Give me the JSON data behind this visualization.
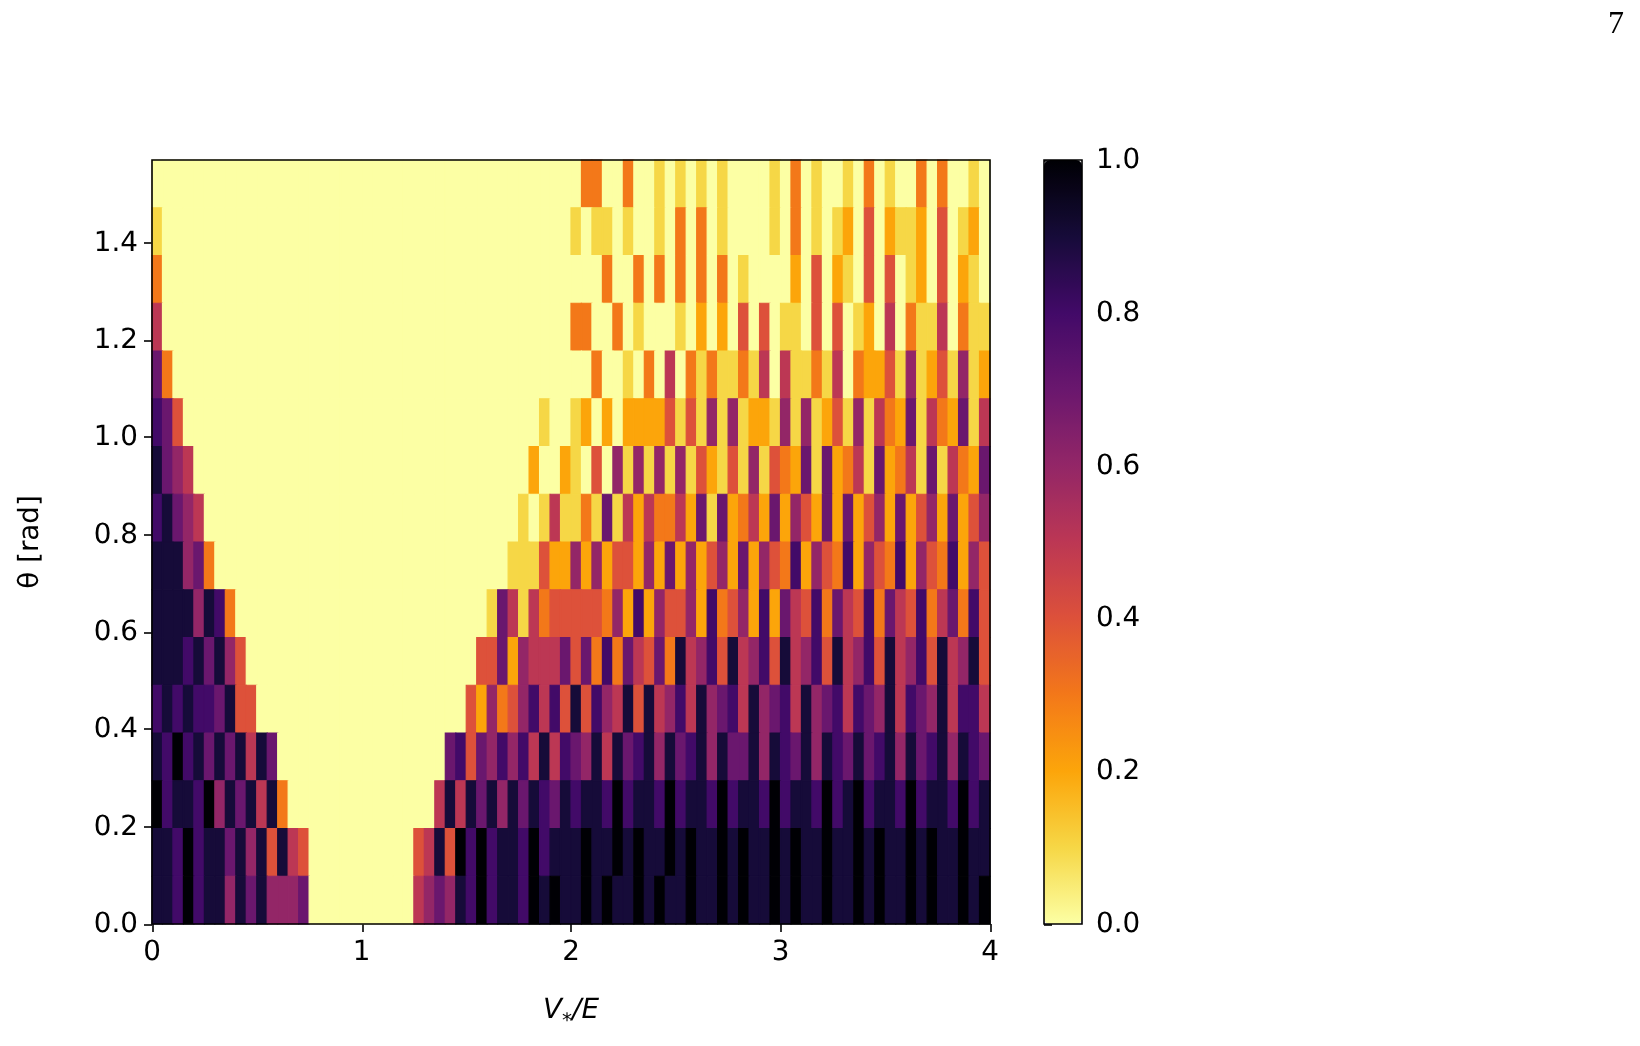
{
  "chart_data": {
    "type": "heatmap",
    "xlabel": "V$_{*}$/E",
    "ylabel": "θ [rad]",
    "xlim": [
      0,
      4
    ],
    "ylim": [
      0,
      1.57
    ],
    "clim": [
      0,
      1
    ],
    "xticks": [
      0,
      1,
      2,
      3,
      4
    ],
    "yticks": [
      {
        "value": 0,
        "label": "0.0"
      },
      0.2,
      0.4,
      0.6,
      0.8,
      {
        "value": 1,
        "label": "1.0"
      },
      1.2,
      1.4
    ],
    "cticks": [
      {
        "value": 0,
        "label": "0.0"
      },
      0.2,
      0.4,
      0.6,
      0.8,
      {
        "value": 1,
        "label": "1.0"
      }
    ],
    "annotations": [
      "7"
    ],
    "cells": [
      [
        0,
        0,
        0,
        0,
        0,
        0,
        0,
        0,
        0,
        0,
        0,
        0,
        0,
        0,
        0,
        0,
        0,
        0,
        0,
        0,
        0,
        0,
        0,
        0,
        0,
        0,
        0,
        0,
        0,
        0,
        0,
        0,
        0,
        0,
        0,
        0,
        0,
        0,
        0,
        0,
        0,
        0.3,
        0.3,
        0,
        0,
        0.3,
        0,
        0,
        0.1,
        0,
        0.1,
        0,
        0.1,
        0,
        0.1,
        0,
        0,
        0,
        0,
        0.1,
        0,
        0.3,
        0,
        0.1,
        0,
        0,
        0.1,
        0,
        0.3,
        0,
        0.1,
        0,
        0,
        0.3,
        0,
        0.3,
        0,
        0,
        0.1,
        0
      ],
      [
        0.1,
        0,
        0,
        0,
        0,
        0,
        0,
        0,
        0,
        0,
        0,
        0,
        0,
        0,
        0,
        0,
        0,
        0,
        0,
        0,
        0,
        0,
        0,
        0,
        0,
        0,
        0,
        0,
        0,
        0,
        0,
        0,
        0,
        0,
        0,
        0,
        0,
        0,
        0,
        0,
        0.1,
        0,
        0.1,
        0.1,
        0,
        0.1,
        0,
        0,
        0.1,
        0,
        0.3,
        0,
        0.3,
        0,
        0.1,
        0,
        0,
        0,
        0,
        0.1,
        0,
        0.3,
        0,
        0.1,
        0,
        0.1,
        0.2,
        0,
        0.4,
        0,
        0.2,
        0.1,
        0.1,
        0.2,
        0,
        0.4,
        0,
        0.1,
        0.2,
        0
      ],
      [
        0.3,
        0,
        0,
        0,
        0,
        0,
        0,
        0,
        0,
        0,
        0,
        0,
        0,
        0,
        0,
        0,
        0,
        0,
        0,
        0,
        0,
        0,
        0,
        0,
        0,
        0,
        0,
        0,
        0,
        0,
        0,
        0,
        0,
        0,
        0,
        0,
        0,
        0,
        0,
        0,
        0,
        0,
        0,
        0.3,
        0,
        0,
        0.3,
        0,
        0.3,
        0,
        0.3,
        0,
        0.3,
        0,
        0.3,
        0,
        0.1,
        0,
        0,
        0,
        0,
        0.2,
        0,
        0.4,
        0,
        0.2,
        0.1,
        0,
        0.4,
        0,
        0.4,
        0,
        0.1,
        0.2,
        0,
        0.4,
        0,
        0.2,
        0.1,
        0
      ],
      [
        0.5,
        0,
        0,
        0,
        0,
        0,
        0,
        0,
        0,
        0,
        0,
        0,
        0,
        0,
        0,
        0,
        0,
        0,
        0,
        0,
        0,
        0,
        0,
        0,
        0,
        0,
        0,
        0,
        0,
        0,
        0,
        0,
        0,
        0,
        0,
        0,
        0,
        0,
        0,
        0,
        0.3,
        0.3,
        0,
        0,
        0.3,
        0,
        0.1,
        0,
        0,
        0,
        0.1,
        0,
        0.2,
        0,
        0.2,
        0,
        0.4,
        0,
        0.4,
        0,
        0.1,
        0.1,
        0,
        0.4,
        0,
        0.4,
        0,
        0.1,
        0.2,
        0,
        0.5,
        0,
        0.3,
        0.1,
        0.1,
        0.5,
        0,
        0.3,
        0.1,
        0.1
      ],
      [
        0.7,
        0.3,
        0,
        0,
        0,
        0,
        0,
        0,
        0,
        0,
        0,
        0,
        0,
        0,
        0,
        0,
        0,
        0,
        0,
        0,
        0,
        0,
        0,
        0,
        0,
        0,
        0,
        0,
        0,
        0,
        0,
        0,
        0,
        0,
        0,
        0,
        0,
        0,
        0,
        0,
        0,
        0,
        0.3,
        0,
        0,
        0.1,
        0,
        0.3,
        0,
        0.5,
        0,
        0.3,
        0.1,
        0.3,
        0.1,
        0.1,
        0.3,
        0.1,
        0.5,
        0,
        0.5,
        0.1,
        0.1,
        0.3,
        0.1,
        0.5,
        0,
        0.3,
        0.2,
        0.2,
        0.4,
        0.1,
        0.6,
        0.1,
        0.2,
        0.4,
        0.1,
        0.6,
        0.1,
        0.2
      ],
      [
        0.8,
        0.7,
        0.4,
        0,
        0,
        0,
        0,
        0,
        0,
        0,
        0,
        0,
        0,
        0,
        0,
        0,
        0,
        0,
        0,
        0,
        0,
        0,
        0,
        0,
        0,
        0,
        0,
        0,
        0,
        0,
        0,
        0,
        0,
        0,
        0,
        0,
        0,
        0.1,
        0,
        0,
        0.1,
        0.2,
        0,
        0.2,
        0,
        0.2,
        0.2,
        0.2,
        0.2,
        0.4,
        0.1,
        0.4,
        0.1,
        0.6,
        0.1,
        0.6,
        0.1,
        0.2,
        0.2,
        0.1,
        0.6,
        0.1,
        0.6,
        0.1,
        0.2,
        0.4,
        0.1,
        0.6,
        0.1,
        0.5,
        0.3,
        0.2,
        0.7,
        0.1,
        0.5,
        0.3,
        0.2,
        0.7,
        0.1,
        0.5
      ],
      [
        0.9,
        0.7,
        0.6,
        0.5,
        0,
        0,
        0,
        0,
        0,
        0,
        0,
        0,
        0,
        0,
        0,
        0,
        0,
        0,
        0,
        0,
        0,
        0,
        0,
        0,
        0,
        0,
        0,
        0,
        0,
        0,
        0,
        0,
        0,
        0,
        0,
        0,
        0.2,
        0,
        0,
        0.2,
        0.1,
        0,
        0.4,
        0,
        0.6,
        0.1,
        0.6,
        0.1,
        0.6,
        0.1,
        0.6,
        0.1,
        0.4,
        0.2,
        0.1,
        0.4,
        0.1,
        0.6,
        0.1,
        0.4,
        0.3,
        0.2,
        0.7,
        0.1,
        0.7,
        0.2,
        0.3,
        0.5,
        0.1,
        0.7,
        0.2,
        0.3,
        0.5,
        0.1,
        0.7,
        0.1,
        0.5,
        0.3,
        0.2,
        0.7
      ],
      [
        0.8,
        0.9,
        0.7,
        0.6,
        0.5,
        0,
        0,
        0,
        0,
        0,
        0,
        0,
        0,
        0,
        0,
        0,
        0,
        0,
        0,
        0,
        0,
        0,
        0,
        0,
        0,
        0,
        0,
        0,
        0,
        0,
        0,
        0,
        0,
        0,
        0,
        0.1,
        0,
        0.1,
        0.5,
        0.1,
        0.1,
        0.3,
        0.1,
        0.7,
        0.1,
        0.5,
        0.2,
        0.5,
        0.3,
        0.3,
        0.5,
        0.2,
        0.7,
        0.1,
        0.7,
        0.2,
        0.3,
        0.5,
        0.2,
        0.7,
        0.2,
        0.6,
        0.4,
        0.2,
        0.7,
        0.2,
        0.7,
        0.2,
        0.4,
        0.6,
        0.2,
        0.7,
        0.2,
        0.4,
        0.6,
        0.2,
        0.7,
        0.2,
        0.4,
        0.6
      ],
      [
        0.9,
        0.9,
        0.9,
        0.6,
        0.7,
        0.3,
        0,
        0,
        0,
        0,
        0,
        0,
        0,
        0,
        0,
        0,
        0,
        0,
        0,
        0,
        0,
        0,
        0,
        0,
        0,
        0,
        0,
        0,
        0,
        0,
        0,
        0,
        0,
        0,
        0.1,
        0.1,
        0.1,
        0.4,
        0.2,
        0.2,
        0.6,
        0.2,
        0.6,
        0.2,
        0.4,
        0.4,
        0.2,
        0.6,
        0.2,
        0.7,
        0.2,
        0.6,
        0.2,
        0.4,
        0.6,
        0.2,
        0.7,
        0.2,
        0.6,
        0.4,
        0.3,
        0.8,
        0.2,
        0.6,
        0.4,
        0.3,
        0.8,
        0.2,
        0.6,
        0.4,
        0.3,
        0.8,
        0.2,
        0.6,
        0.4,
        0.3,
        0.8,
        0.2,
        0.6,
        0.4
      ],
      [
        0.9,
        0.9,
        0.9,
        0.9,
        0.6,
        0.9,
        0.8,
        0.3,
        0,
        0,
        0,
        0,
        0,
        0,
        0,
        0,
        0,
        0,
        0,
        0,
        0,
        0,
        0,
        0,
        0,
        0,
        0,
        0,
        0,
        0,
        0,
        0,
        0.1,
        0.7,
        0.5,
        0.1,
        0.5,
        0.3,
        0.4,
        0.4,
        0.4,
        0.4,
        0.4,
        0.3,
        0.6,
        0.2,
        0.8,
        0.2,
        0.6,
        0.4,
        0.4,
        0.6,
        0.2,
        0.8,
        0.3,
        0.4,
        0.6,
        0.2,
        0.8,
        0.2,
        0.7,
        0.5,
        0.4,
        0.8,
        0.3,
        0.7,
        0.5,
        0.4,
        0.8,
        0.3,
        0.7,
        0.5,
        0.4,
        0.8,
        0.3,
        0.5,
        0.7,
        0.3,
        0.8,
        0.4
      ],
      [
        0.9,
        0.9,
        0.9,
        0.8,
        0.9,
        0.7,
        0.9,
        0.6,
        0.4,
        0,
        0,
        0,
        0,
        0,
        0,
        0,
        0,
        0,
        0,
        0,
        0,
        0,
        0,
        0,
        0,
        0,
        0,
        0,
        0,
        0,
        0,
        0.4,
        0.4,
        0.7,
        0.2,
        0.6,
        0.5,
        0.5,
        0.5,
        0.7,
        0.4,
        0.7,
        0.3,
        0.8,
        0.3,
        0.7,
        0.5,
        0.4,
        0.7,
        0.3,
        0.9,
        0.5,
        0.6,
        0.8,
        0.4,
        0.9,
        0.5,
        0.6,
        0.8,
        0.4,
        0.9,
        0.5,
        0.6,
        0.8,
        0.4,
        0.9,
        0.5,
        0.6,
        0.8,
        0.4,
        0.9,
        0.5,
        0.6,
        0.8,
        0.4,
        0.9,
        0.5,
        0.6,
        0.9,
        0.4
      ],
      [
        0.8,
        0.9,
        0.8,
        0.9,
        0.8,
        0.8,
        0.7,
        0.9,
        0.4,
        0.4,
        0,
        0,
        0,
        0,
        0,
        0,
        0,
        0,
        0,
        0,
        0,
        0,
        0,
        0,
        0,
        0,
        0,
        0,
        0,
        0,
        0.4,
        0.2,
        0.6,
        0.3,
        0.4,
        0.6,
        0.8,
        0.5,
        0.8,
        0.4,
        0.9,
        0.4,
        0.8,
        0.6,
        0.5,
        0.9,
        0.4,
        0.9,
        0.5,
        0.6,
        0.8,
        0.5,
        0.9,
        0.6,
        0.7,
        0.8,
        0.5,
        0.9,
        0.6,
        0.7,
        0.8,
        0.5,
        0.9,
        0.6,
        0.7,
        0.8,
        0.5,
        0.8,
        0.7,
        0.6,
        0.9,
        0.5,
        0.8,
        0.7,
        0.6,
        0.9,
        0.5,
        0.8,
        0.8,
        0.5
      ],
      [
        0.9,
        0.8,
        1,
        0.8,
        0.9,
        0.7,
        0.9,
        0.7,
        0.9,
        0.5,
        0.9,
        0.7,
        0,
        0,
        0,
        0,
        0,
        0,
        0,
        0,
        0,
        0,
        0,
        0,
        0,
        0,
        0,
        0,
        0.7,
        0.8,
        0.4,
        0.7,
        0.6,
        0.8,
        0.6,
        0.8,
        0.5,
        0.9,
        0.5,
        0.8,
        0.7,
        0.6,
        0.9,
        0.5,
        0.9,
        0.7,
        0.8,
        0.9,
        0.6,
        0.9,
        0.7,
        0.8,
        0.9,
        0.6,
        0.9,
        0.7,
        0.7,
        0.9,
        0.6,
        0.9,
        0.8,
        0.7,
        0.9,
        0.6,
        0.9,
        0.8,
        0.7,
        0.9,
        0.7,
        0.8,
        0.9,
        0.6,
        0.9,
        0.7,
        0.8,
        0.9,
        0.6,
        0.9,
        0.8,
        0.7
      ],
      [
        1,
        0.8,
        0.9,
        0.9,
        0.8,
        1,
        0.6,
        0.9,
        0.7,
        0.9,
        0.5,
        0.9,
        0.3,
        0,
        0,
        0,
        0,
        0,
        0,
        0,
        0,
        0,
        0,
        0,
        0,
        0,
        0,
        0.5,
        0.9,
        0.5,
        0.9,
        0.7,
        0.9,
        0.6,
        0.9,
        0.7,
        0.9,
        0.8,
        0.7,
        0.9,
        0.8,
        0.9,
        0.9,
        0.8,
        1,
        0.8,
        0.9,
        0.9,
        0.8,
        1,
        0.8,
        0.9,
        0.9,
        0.8,
        1,
        0.8,
        0.9,
        0.9,
        0.8,
        1,
        0.8,
        0.9,
        0.9,
        0.8,
        1,
        0.8,
        0.9,
        1,
        0.8,
        0.9,
        0.9,
        0.8,
        1,
        0.8,
        0.9,
        0.9,
        0.8,
        1,
        0.8,
        0.9
      ],
      [
        0.9,
        0.9,
        0.8,
        1,
        0.8,
        0.9,
        0.9,
        0.7,
        0.9,
        0.6,
        0.9,
        0.4,
        0.9,
        0.5,
        0.4,
        0,
        0,
        0,
        0,
        0,
        0,
        0,
        0,
        0,
        0,
        0.4,
        0.5,
        0.9,
        0.4,
        1,
        0.8,
        1,
        0.8,
        0.9,
        0.9,
        0.8,
        1,
        0.8,
        0.9,
        0.9,
        0.9,
        1,
        0.9,
        0.9,
        1,
        0.9,
        1,
        0.9,
        0.9,
        1,
        0.9,
        1,
        0.9,
        0.9,
        1,
        0.9,
        1,
        0.9,
        0.9,
        1,
        0.9,
        1,
        0.9,
        0.9,
        1,
        0.9,
        0.9,
        1,
        0.9,
        1,
        0.9,
        0.9,
        1,
        0.9,
        1,
        0.9,
        0.9,
        1,
        0.9,
        0.9
      ],
      [
        0.9,
        0.9,
        0.8,
        1,
        0.8,
        0.9,
        0.9,
        0.6,
        0.9,
        0.7,
        0.9,
        0.6,
        0.6,
        0.6,
        0.7,
        0,
        0,
        0,
        0,
        0,
        0,
        0,
        0,
        0,
        0,
        0.5,
        0.6,
        0.7,
        0.6,
        0.9,
        0.8,
        1,
        0.8,
        0.9,
        0.9,
        0.8,
        1,
        0.9,
        1,
        0.9,
        0.9,
        1,
        0.9,
        1,
        0.9,
        0.9,
        1,
        0.9,
        1,
        0.9,
        0.9,
        1,
        0.9,
        0.9,
        1,
        0.9,
        1,
        0.9,
        0.9,
        1,
        0.9,
        1,
        0.9,
        0.9,
        1,
        0.9,
        0.9,
        1,
        0.9,
        1,
        0.9,
        0.9,
        1,
        0.9,
        1,
        0.9,
        0.9,
        1,
        0.9,
        1
      ]
    ]
  }
}
